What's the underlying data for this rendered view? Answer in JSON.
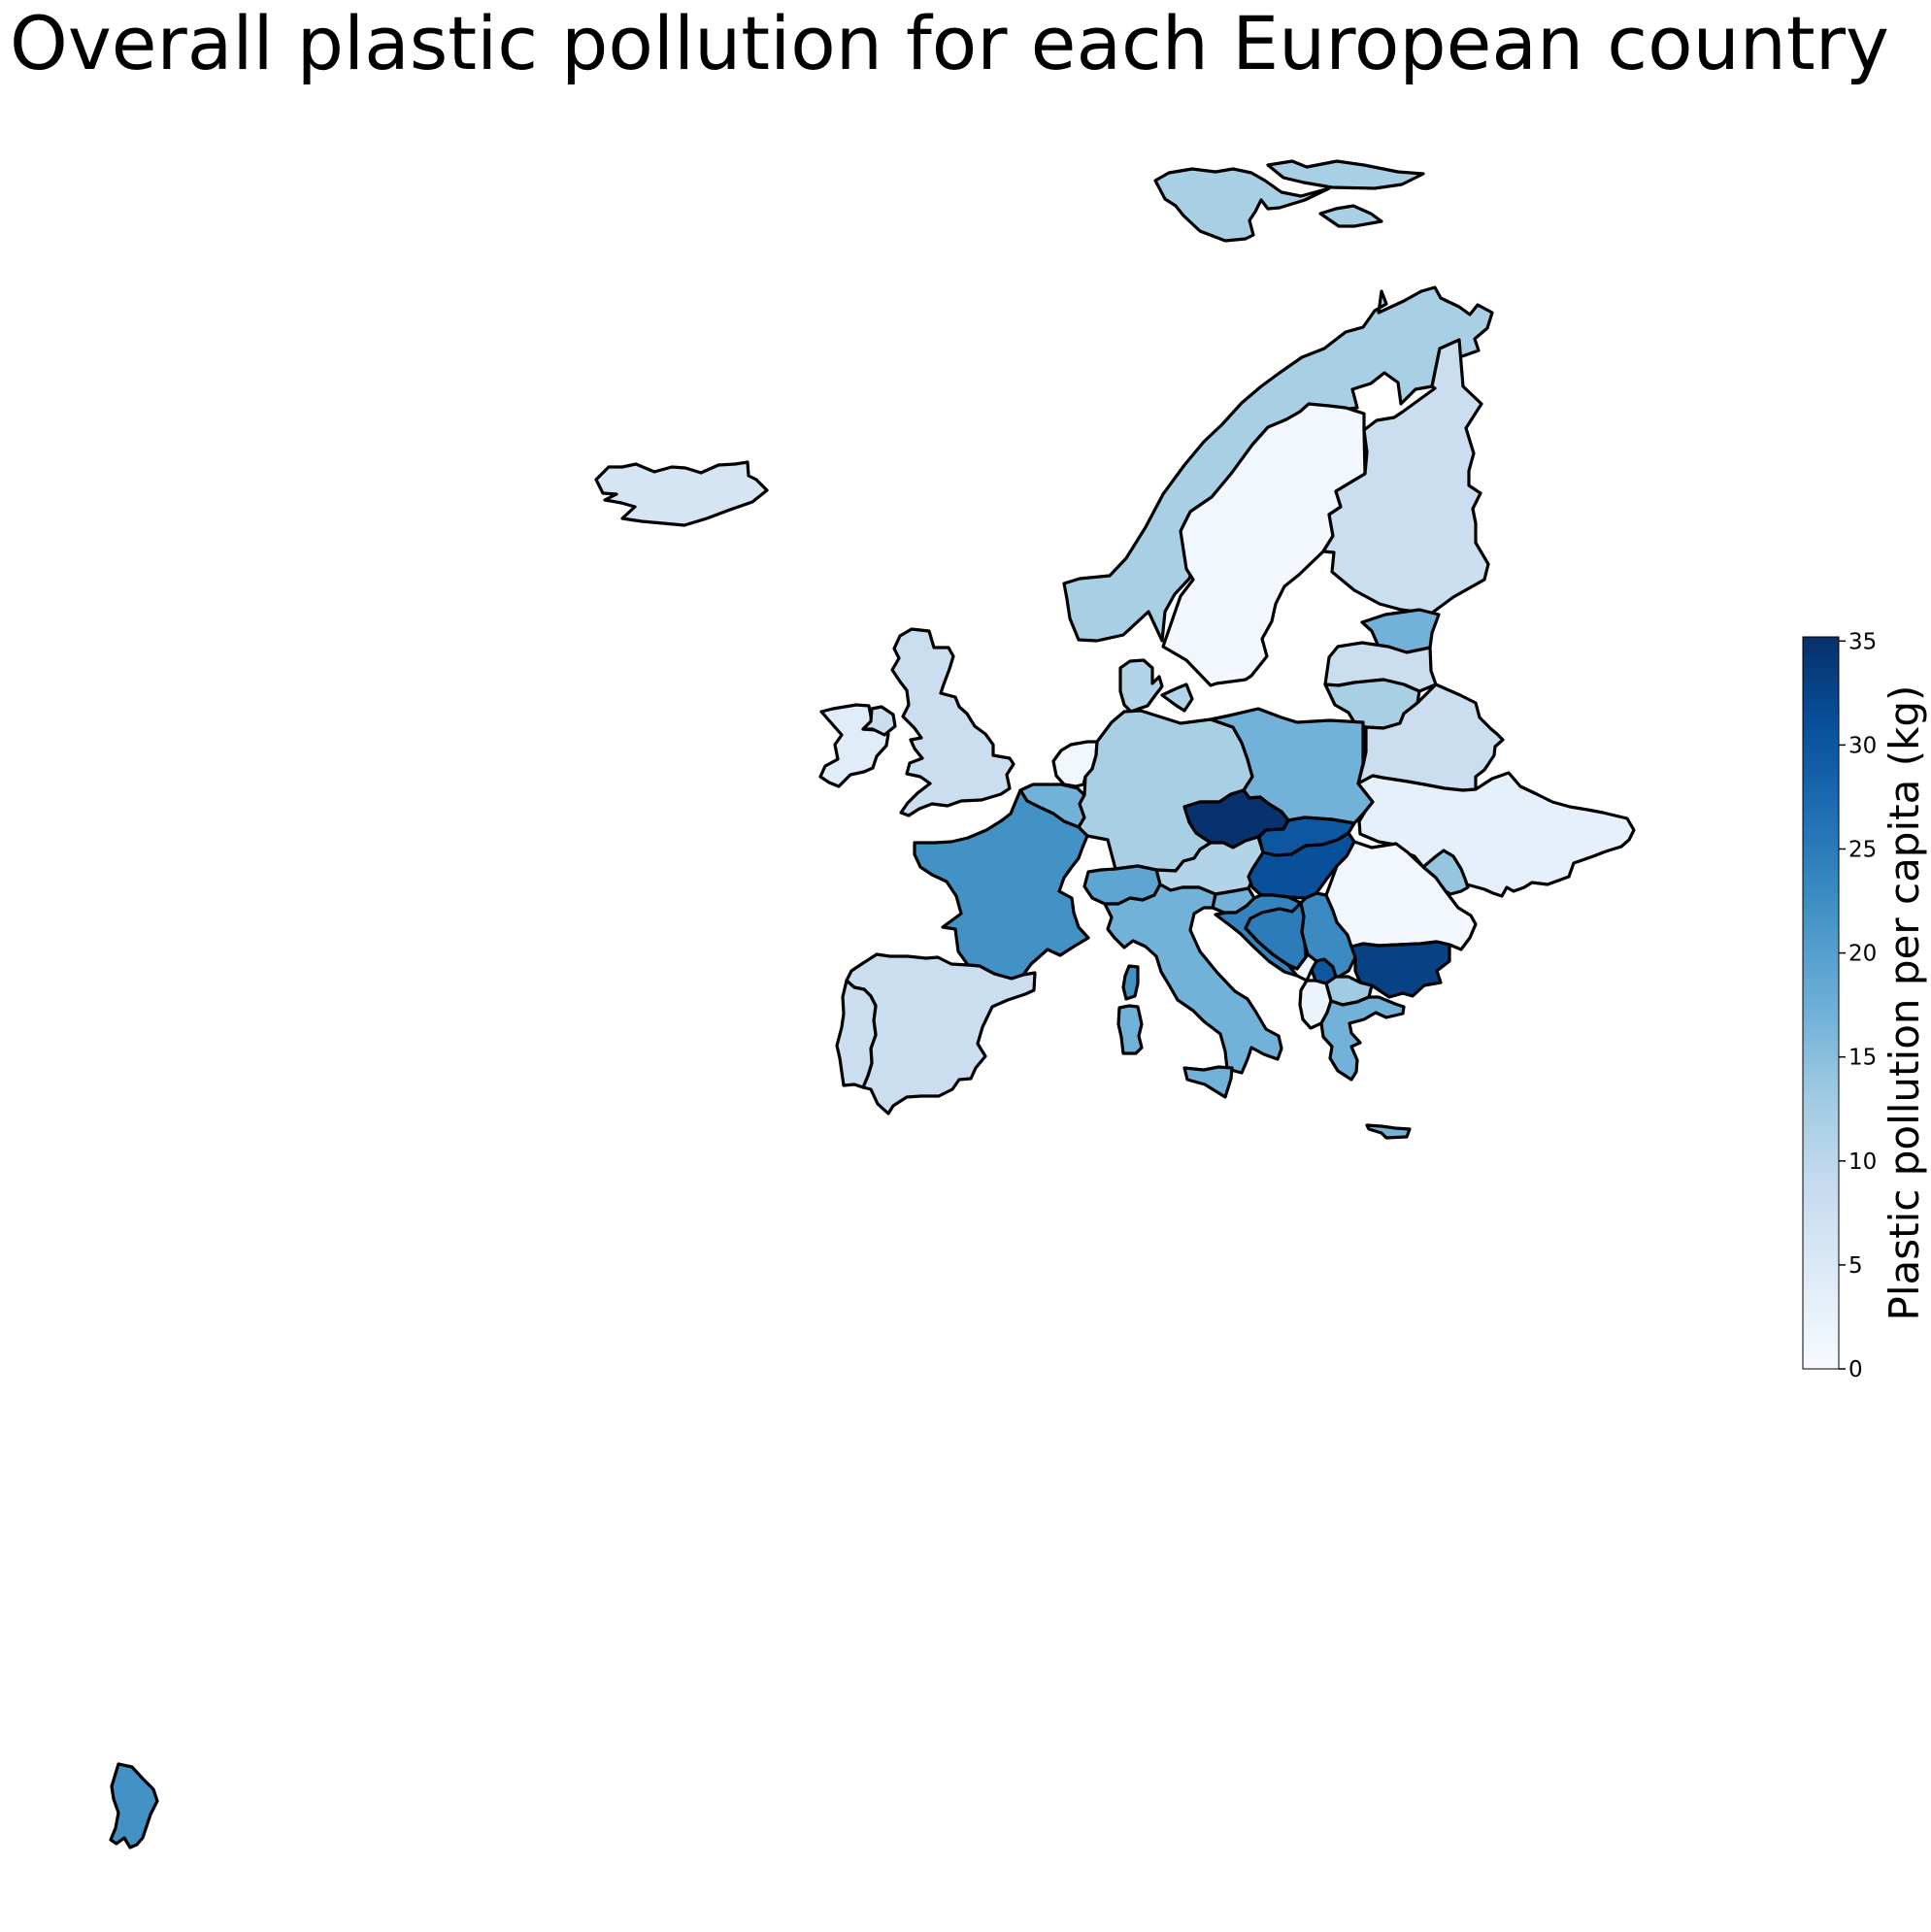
{
  "title": "Overall plastic pollution for each European country",
  "colorbar": {
    "label": "Plastic pollution per capita (kg)",
    "min": 0,
    "max": 35.2,
    "ticks": [
      0,
      5,
      10,
      15,
      20,
      25,
      30,
      35
    ],
    "colormap": "Blues",
    "ramp_colors": [
      "#f7fbff",
      "#deebf7",
      "#c6dbef",
      "#9ecae1",
      "#6baed6",
      "#4292c6",
      "#2171b5",
      "#08519c",
      "#08306b"
    ]
  },
  "map_data": {
    "type": "choropleth",
    "regions": [
      {
        "name": "Norway",
        "value": 12
      },
      {
        "name": "Svalbard",
        "value": 12
      },
      {
        "name": "Nordaustlandet",
        "value": 12
      },
      {
        "name": "Kong Karls Land",
        "value": 12
      },
      {
        "name": "Sweden",
        "value": 1
      },
      {
        "name": "Finland",
        "value": 8
      },
      {
        "name": "Iceland",
        "value": 6
      },
      {
        "name": "Ireland",
        "value": 4
      },
      {
        "name": "Northern Ireland",
        "value": 8
      },
      {
        "name": "United Kingdom",
        "value": 8
      },
      {
        "name": "Estonia",
        "value": 17
      },
      {
        "name": "Latvia",
        "value": 8
      },
      {
        "name": "Lithuania",
        "value": 12
      },
      {
        "name": "Belarus",
        "value": 8
      },
      {
        "name": "Denmark",
        "value": 11
      },
      {
        "name": "Zealand",
        "value": 11
      },
      {
        "name": "Netherlands",
        "value": 1
      },
      {
        "name": "Belgium",
        "value": 17
      },
      {
        "name": "Germany",
        "value": 12
      },
      {
        "name": "Poland",
        "value": 17
      },
      {
        "name": "Ukraine",
        "value": 3
      },
      {
        "name": "France",
        "value": 22
      },
      {
        "name": "Czechia",
        "value": 35
      },
      {
        "name": "Slovakia",
        "value": 30
      },
      {
        "name": "Austria",
        "value": 11
      },
      {
        "name": "Hungary",
        "value": 31
      },
      {
        "name": "Switzerland",
        "value": 19
      },
      {
        "name": "Slovenia",
        "value": 17
      },
      {
        "name": "Croatia",
        "value": 24
      },
      {
        "name": "Bosnia and Herzegovina",
        "value": 25
      },
      {
        "name": "Serbia",
        "value": 23
      },
      {
        "name": "Montenegro",
        "value": 1
      },
      {
        "name": "Kosovo",
        "value": 30
      },
      {
        "name": "North Macedonia",
        "value": 13
      },
      {
        "name": "Albania",
        "value": 2
      },
      {
        "name": "Greece",
        "value": 17
      },
      {
        "name": "Crete",
        "value": 17
      },
      {
        "name": "Romania",
        "value": 1
      },
      {
        "name": "Moldova",
        "value": 14
      },
      {
        "name": "Bulgaria",
        "value": 33
      },
      {
        "name": "Italy",
        "value": 17
      },
      {
        "name": "Sicily",
        "value": 17
      },
      {
        "name": "Sardinia",
        "value": 17
      },
      {
        "name": "Corsica",
        "value": 22
      },
      {
        "name": "Spain",
        "value": 8
      },
      {
        "name": "Portugal",
        "value": 8
      },
      {
        "name": "French Guiana",
        "value": 22
      }
    ]
  }
}
